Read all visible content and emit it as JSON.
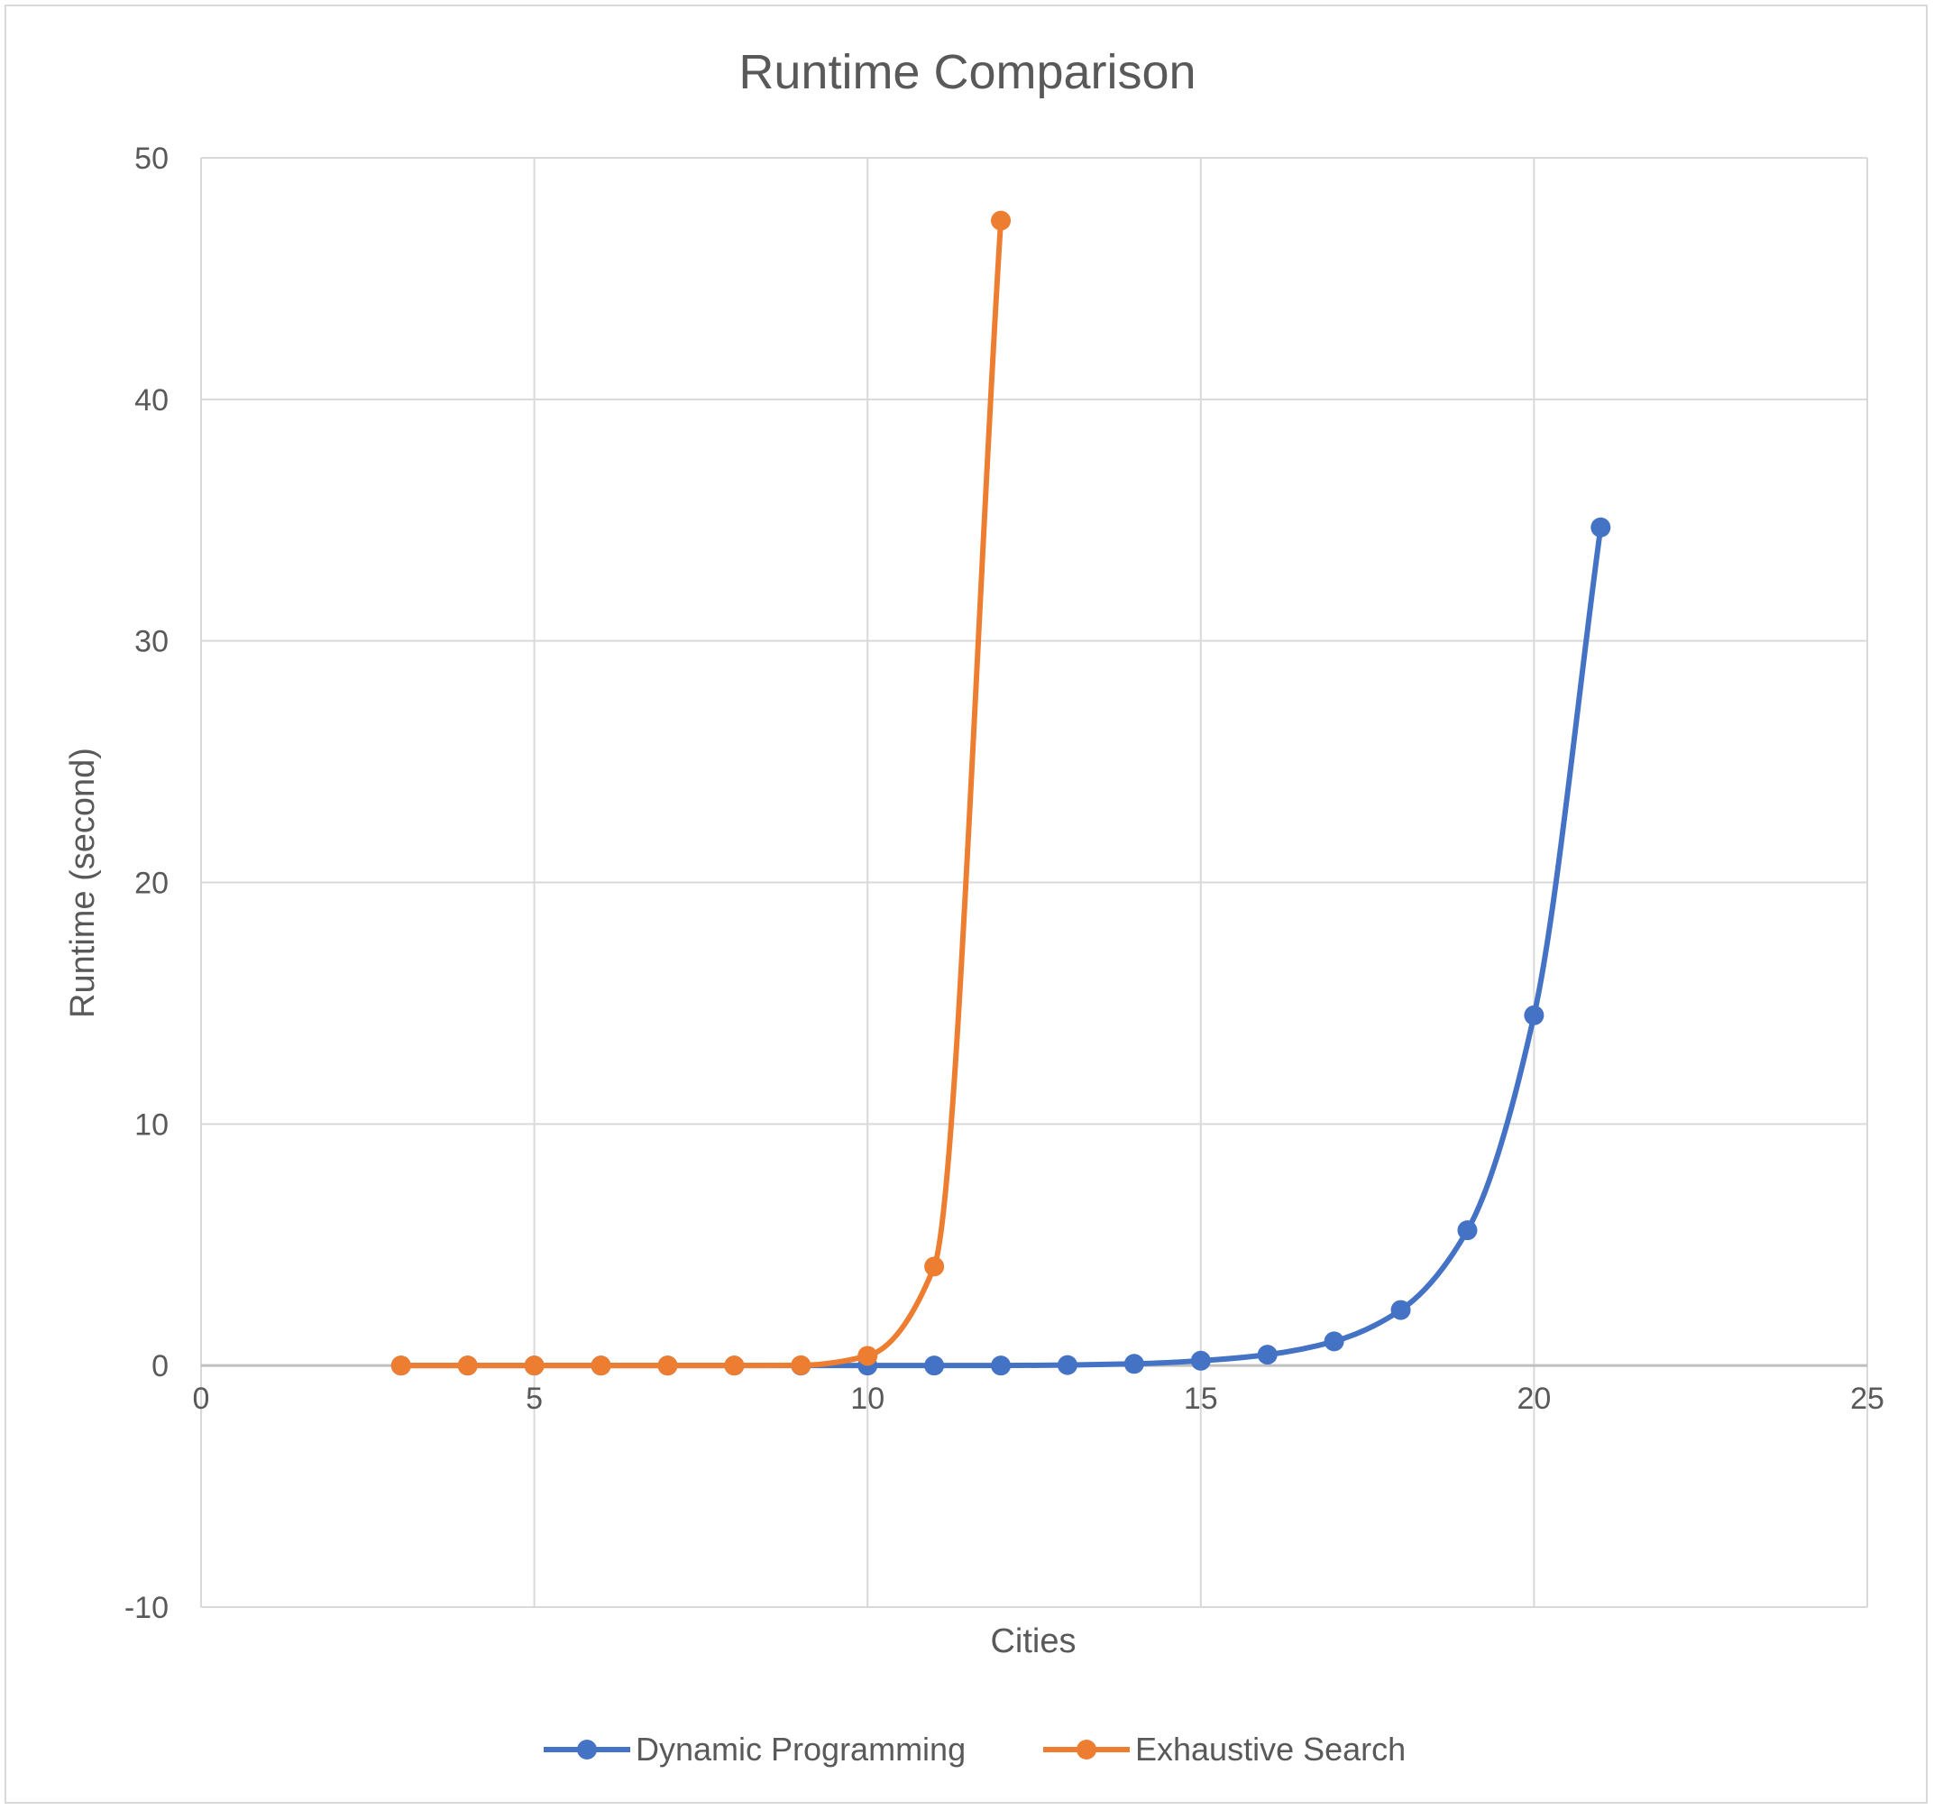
{
  "chart_data": {
    "type": "scatter",
    "title": "Runtime Comparison",
    "xlabel": "Cities",
    "ylabel": "Runtime (second)",
    "xlim": [
      0,
      25
    ],
    "ylim": [
      -10,
      50
    ],
    "x_ticks": [
      0,
      5,
      10,
      15,
      20,
      25
    ],
    "y_ticks": [
      -10,
      0,
      10,
      20,
      30,
      40,
      50
    ],
    "grid": true,
    "smooth_lines": true,
    "legend_position": "bottom",
    "series": [
      {
        "name": "Dynamic Programming",
        "color": "#4472C4",
        "x": [
          3,
          4,
          5,
          6,
          7,
          8,
          9,
          10,
          11,
          12,
          13,
          14,
          15,
          16,
          17,
          18,
          19,
          20,
          21
        ],
        "y": [
          0,
          0,
          0,
          0,
          0,
          0,
          0,
          0,
          0,
          0,
          0.02,
          0.07,
          0.2,
          0.45,
          1.0,
          2.3,
          5.6,
          14.5,
          34.7
        ]
      },
      {
        "name": "Exhaustive Search",
        "color": "#ED7D31",
        "x": [
          3,
          4,
          5,
          6,
          7,
          8,
          9,
          10,
          11,
          12
        ],
        "y": [
          0,
          0,
          0,
          0,
          0,
          0,
          0.01,
          0.4,
          4.1,
          47.4
        ]
      }
    ]
  }
}
